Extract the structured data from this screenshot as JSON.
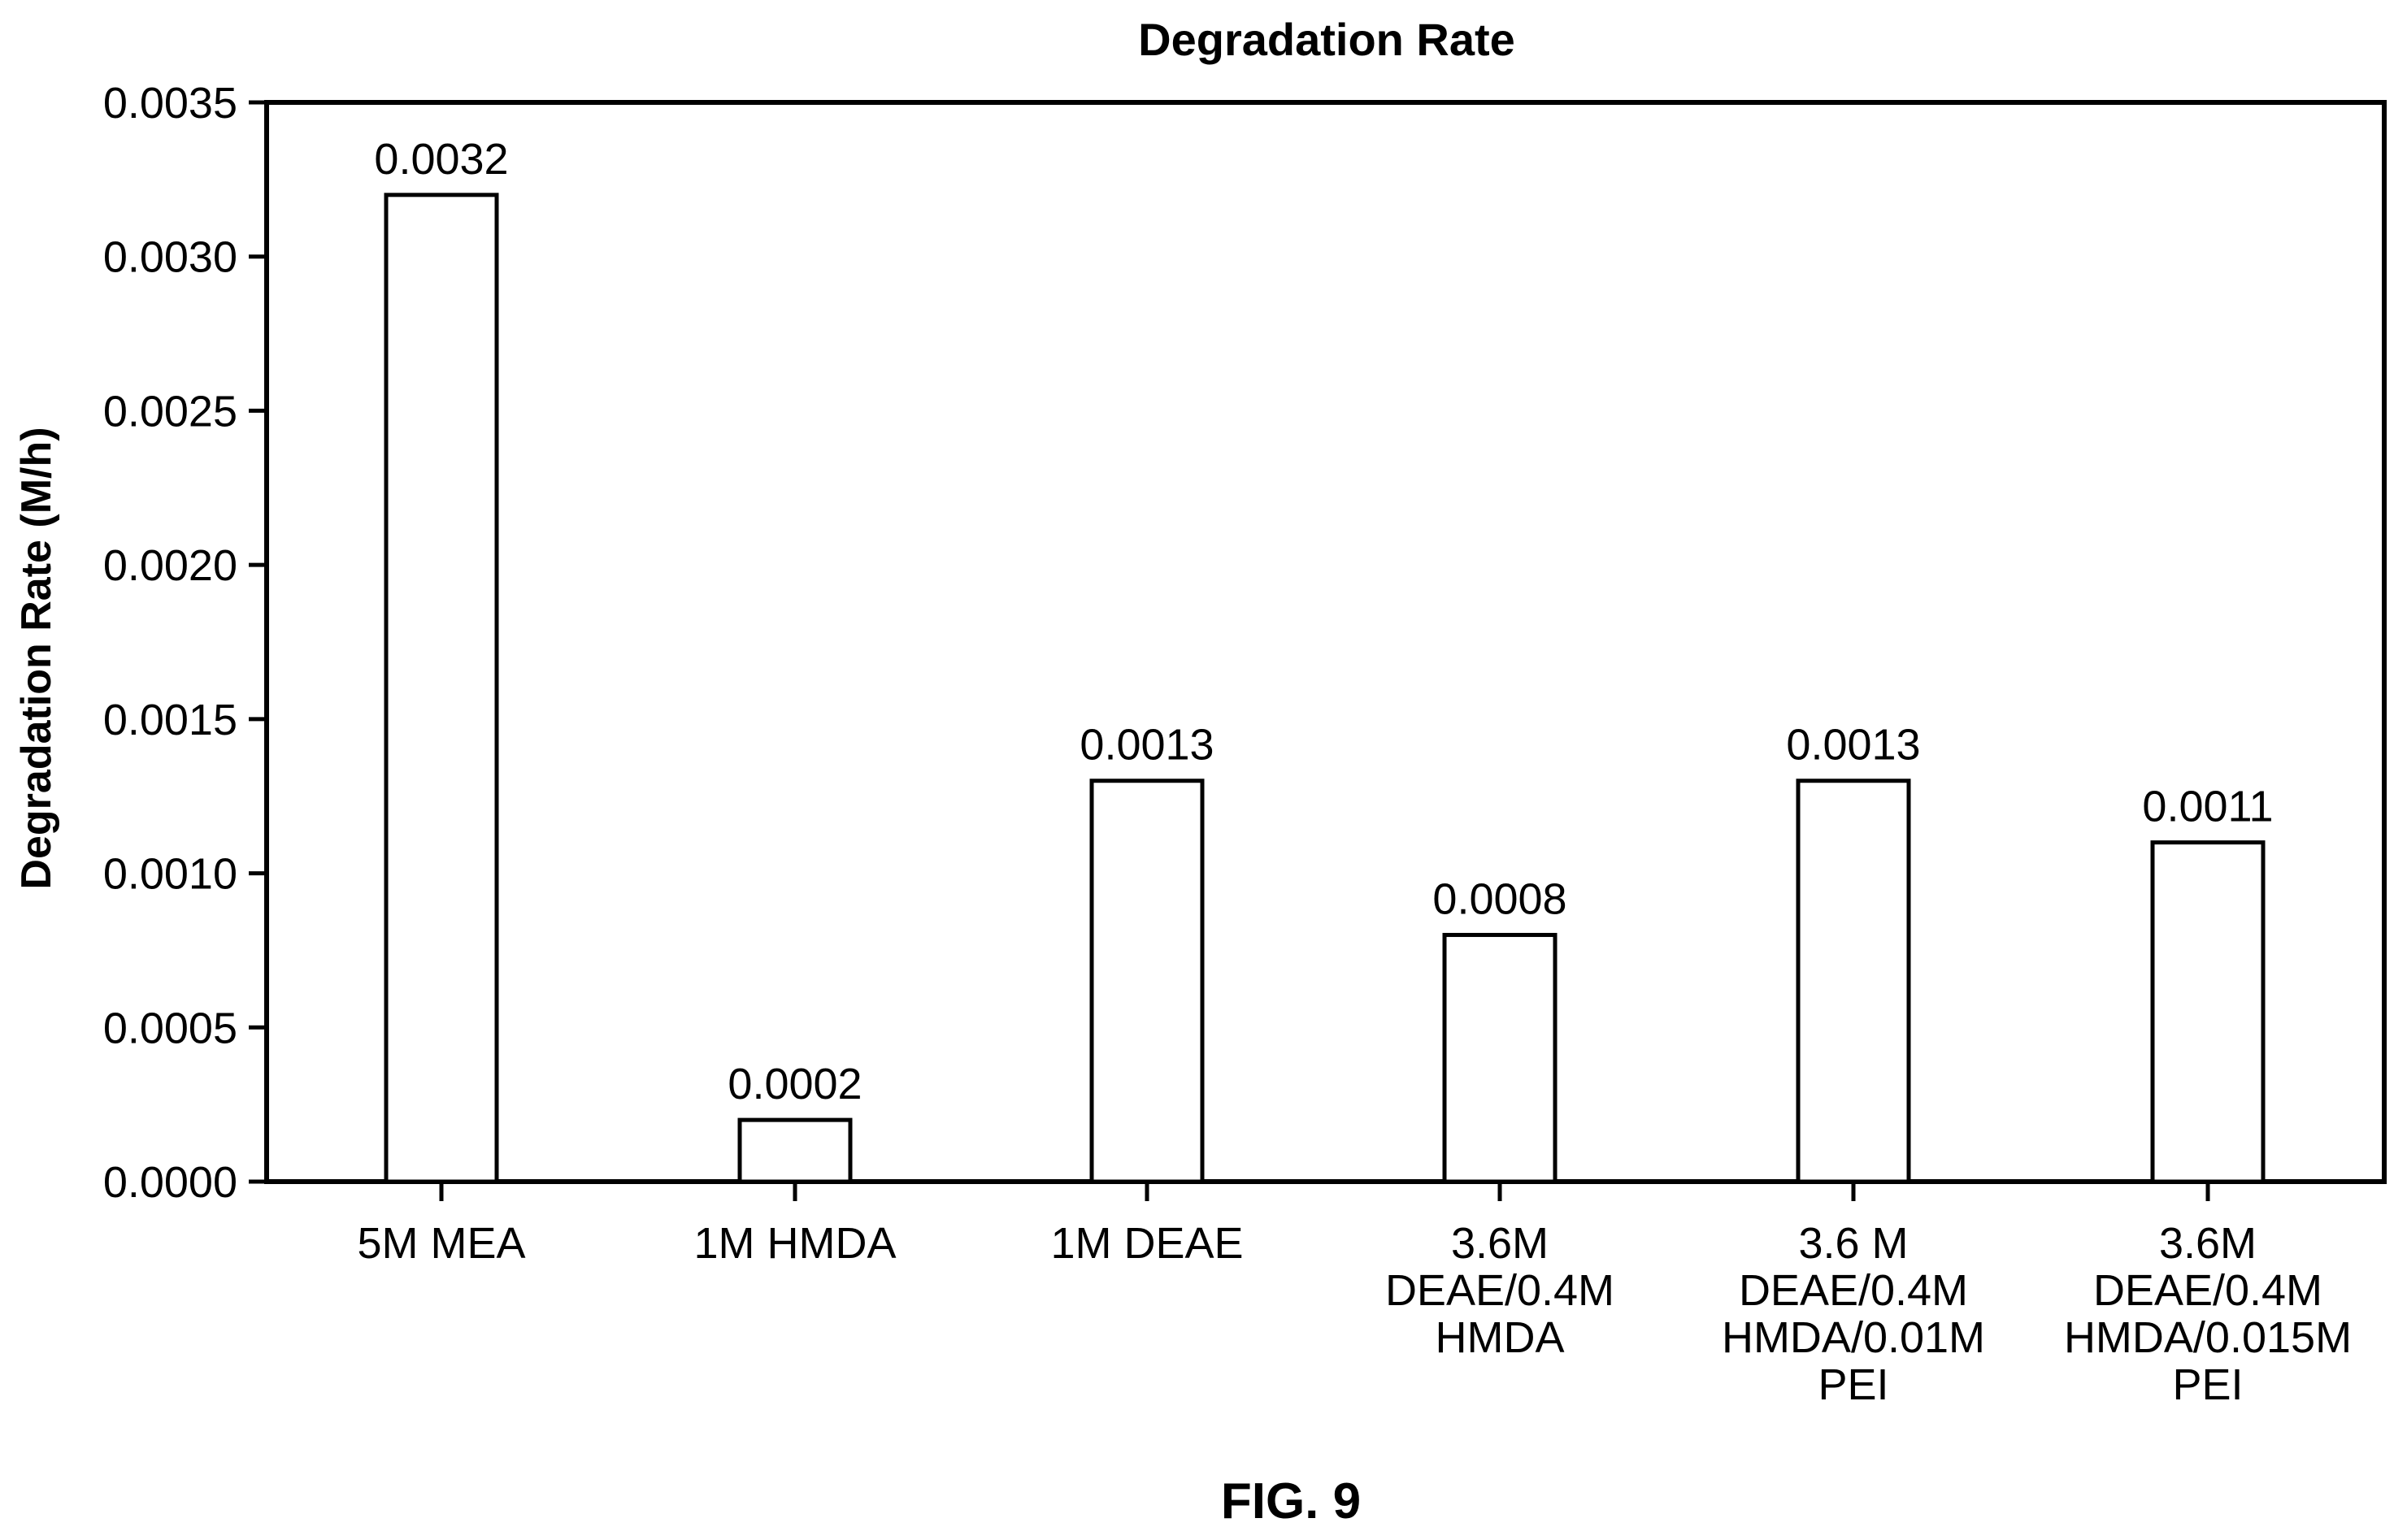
{
  "chart_data": {
    "type": "bar",
    "title": "Degradation Rate",
    "xlabel": "",
    "ylabel": "Degradation Rate (M/h)",
    "ylim": [
      0,
      0.0035
    ],
    "yticks": [
      "0.0000",
      "0.0005",
      "0.0010",
      "0.0015",
      "0.0020",
      "0.0025",
      "0.0030",
      "0.0035"
    ],
    "categories": [
      [
        "5M MEA"
      ],
      [
        "1M HMDA"
      ],
      [
        "1M DEAE"
      ],
      [
        "3.6M",
        "DEAE/0.4M",
        "HMDA"
      ],
      [
        "3.6 M",
        "DEAE/0.4M",
        "HMDA/0.01M",
        "PEI"
      ],
      [
        "3.6M",
        "DEAE/0.4M",
        "HMDA/0.015M",
        "PEI"
      ]
    ],
    "values": [
      0.0032,
      0.0002,
      0.0013,
      0.0008,
      0.0013,
      0.0011
    ],
    "data_labels": [
      "0.0032",
      "0.0002",
      "0.0013",
      "0.0008",
      "0.0013",
      "0.0011"
    ],
    "grid": false,
    "bar_fill": "#ffffff",
    "bar_stroke": "#000000"
  },
  "figure_caption": "FIG. 9"
}
